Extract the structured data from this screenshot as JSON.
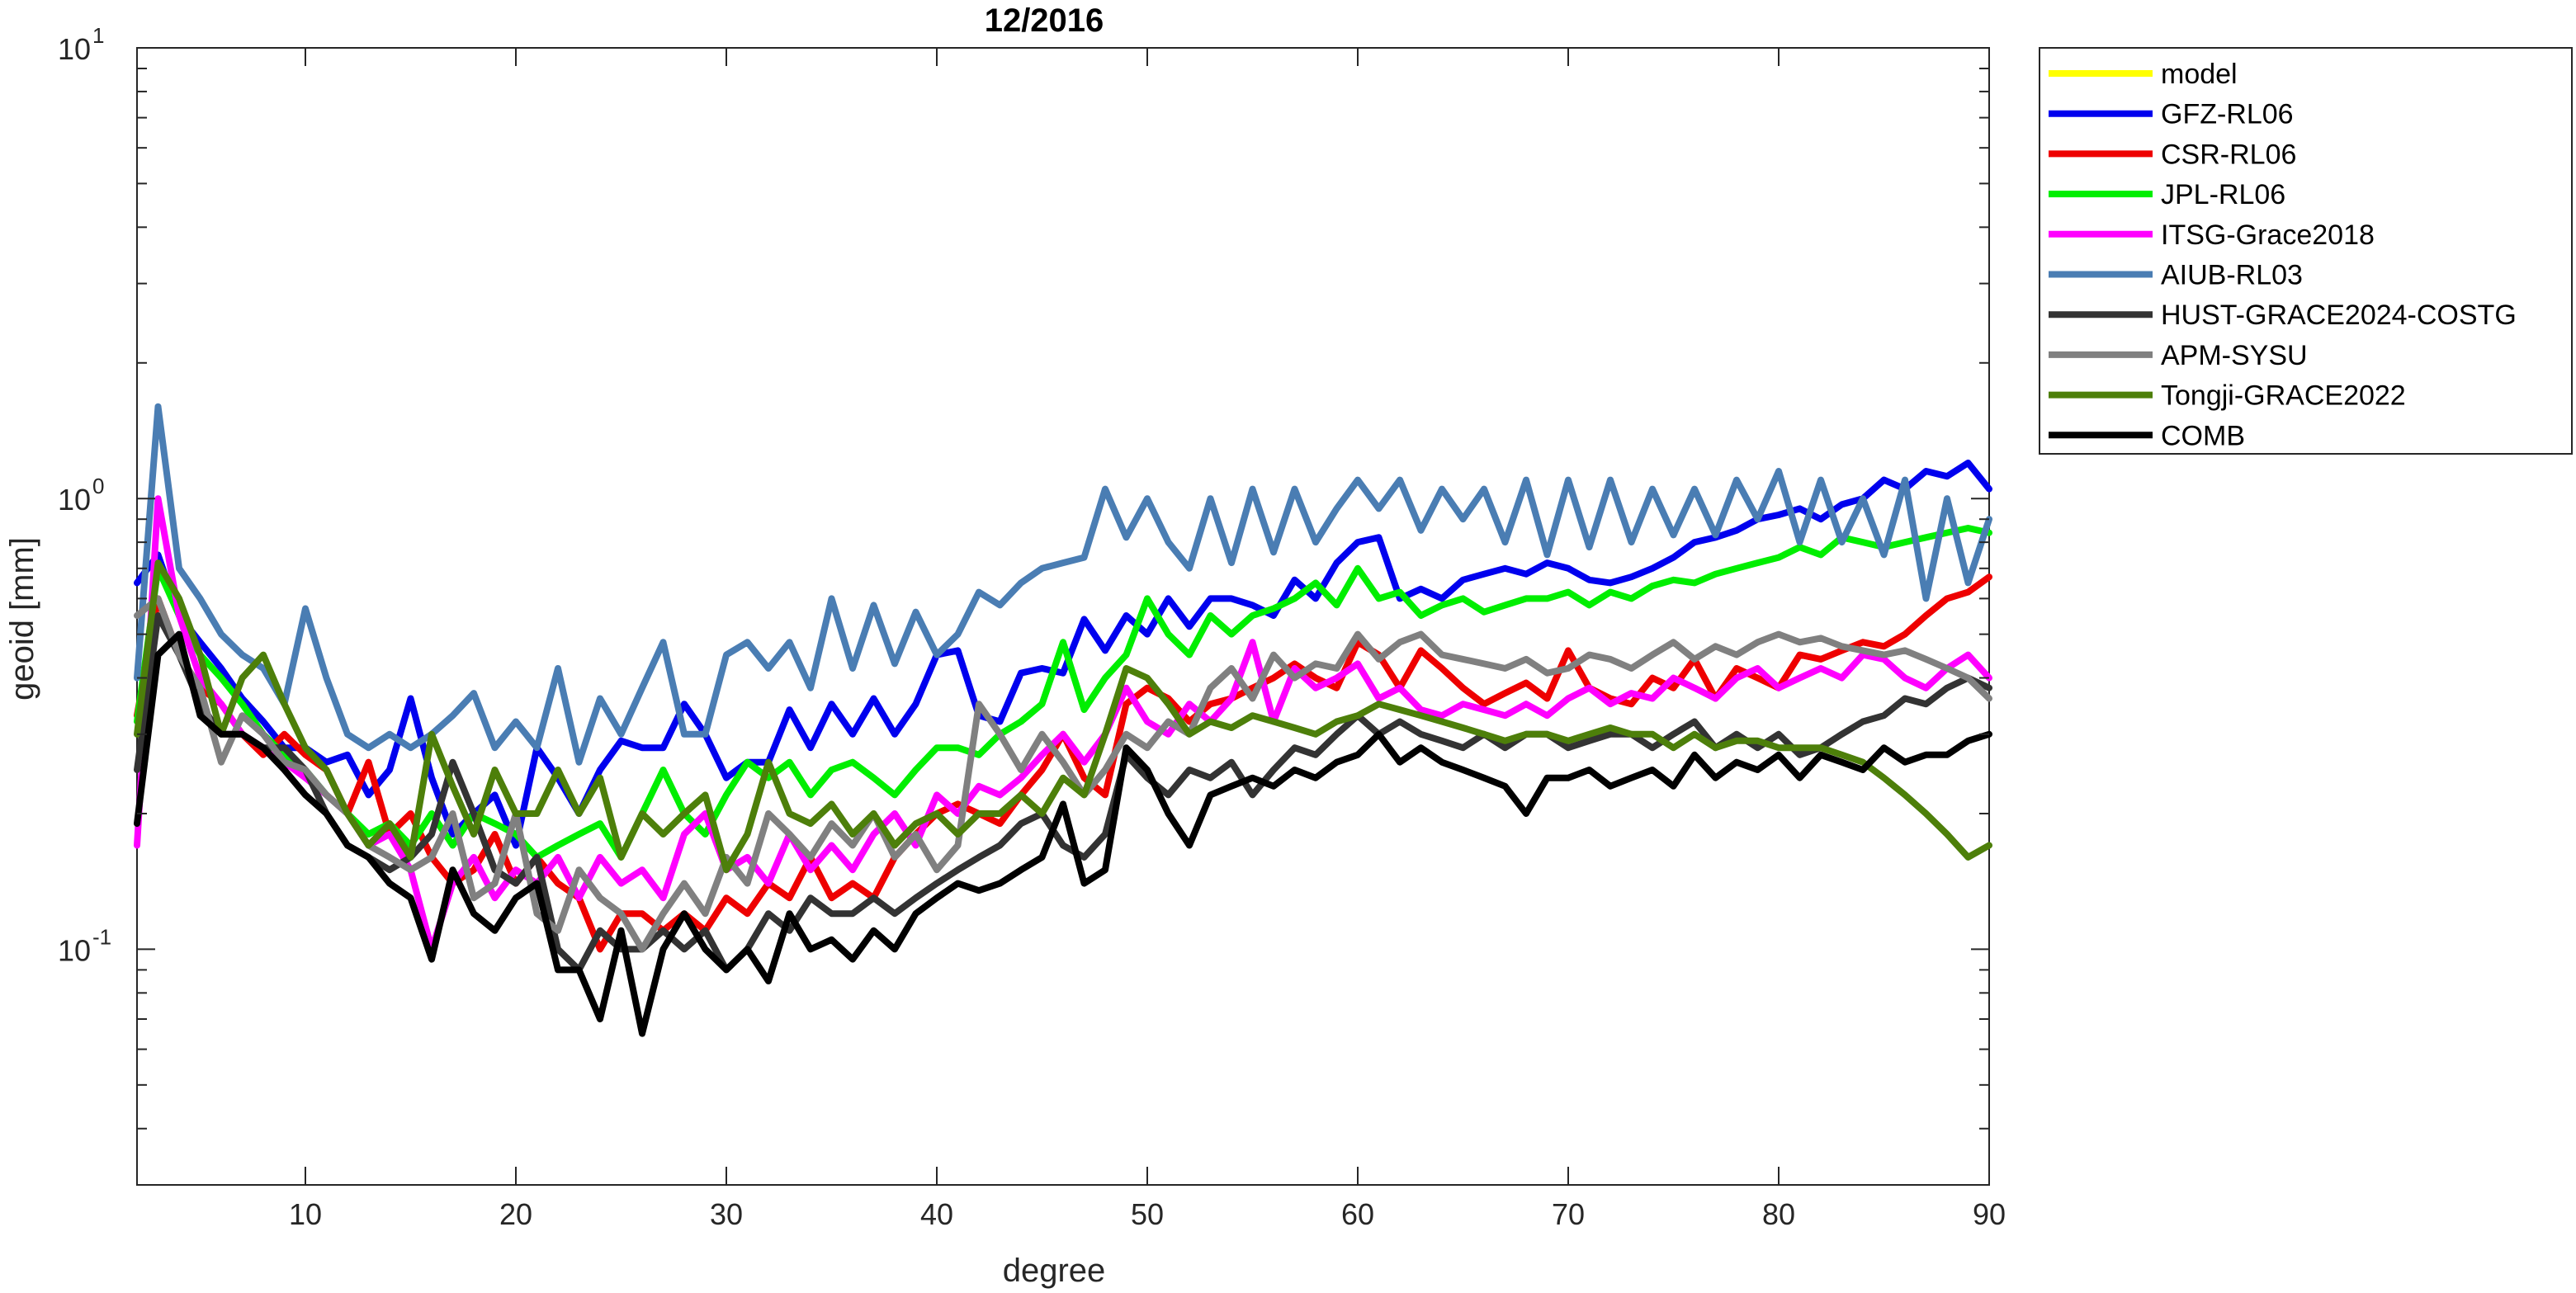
{
  "chart_data": {
    "type": "line",
    "title": "12/2016",
    "xlabel": "degree",
    "ylabel": "geoid [mm]",
    "yscale": "log",
    "xlim": [
      2,
      90
    ],
    "ylim": [
      0.03,
      10
    ],
    "xticks": [
      10,
      20,
      30,
      40,
      50,
      60,
      70,
      80,
      90
    ],
    "yticks": [
      {
        "base": "10",
        "exp": "-1"
      },
      {
        "base": "10",
        "exp": "0"
      },
      {
        "base": "10",
        "exp": "1"
      }
    ],
    "grid": false,
    "legend_position": "outside-right",
    "x_start": 2,
    "series": [
      {
        "name": "model",
        "color": "#ffff00",
        "values": []
      },
      {
        "name": "GFZ-RL06",
        "color": "#0000ee",
        "values": [
          0.65,
          0.75,
          0.55,
          0.48,
          0.42,
          0.36,
          0.32,
          0.28,
          0.28,
          0.26,
          0.27,
          0.22,
          0.25,
          0.36,
          0.24,
          0.18,
          0.2,
          0.22,
          0.17,
          0.28,
          0.24,
          0.2,
          0.25,
          0.29,
          0.28,
          0.28,
          0.35,
          0.3,
          0.24,
          0.26,
          0.26,
          0.34,
          0.28,
          0.35,
          0.3,
          0.36,
          0.3,
          0.35,
          0.45,
          0.46,
          0.33,
          0.32,
          0.41,
          0.42,
          0.41,
          0.54,
          0.46,
          0.55,
          0.5,
          0.6,
          0.52,
          0.6,
          0.6,
          0.58,
          0.55,
          0.66,
          0.6,
          0.72,
          0.8,
          0.82,
          0.6,
          0.63,
          0.6,
          0.66,
          0.68,
          0.7,
          0.68,
          0.72,
          0.7,
          0.66,
          0.65,
          0.67,
          0.7,
          0.74,
          0.8,
          0.82,
          0.85,
          0.9,
          0.92,
          0.95,
          0.9,
          0.97,
          1.0,
          1.1,
          1.05,
          1.15,
          1.12,
          1.2,
          1.05
        ]
      },
      {
        "name": "CSR-RL06",
        "color": "#ee0000",
        "values": [
          0.33,
          0.6,
          0.45,
          0.38,
          0.35,
          0.3,
          0.27,
          0.3,
          0.27,
          0.25,
          0.2,
          0.26,
          0.18,
          0.2,
          0.16,
          0.14,
          0.15,
          0.18,
          0.14,
          0.16,
          0.14,
          0.13,
          0.1,
          0.12,
          0.12,
          0.11,
          0.12,
          0.11,
          0.13,
          0.12,
          0.14,
          0.13,
          0.16,
          0.13,
          0.14,
          0.13,
          0.16,
          0.18,
          0.2,
          0.21,
          0.2,
          0.19,
          0.22,
          0.25,
          0.3,
          0.24,
          0.22,
          0.35,
          0.38,
          0.36,
          0.32,
          0.35,
          0.36,
          0.38,
          0.4,
          0.43,
          0.4,
          0.38,
          0.48,
          0.45,
          0.38,
          0.46,
          0.42,
          0.38,
          0.35,
          0.37,
          0.39,
          0.36,
          0.46,
          0.38,
          0.36,
          0.35,
          0.4,
          0.38,
          0.44,
          0.36,
          0.42,
          0.4,
          0.38,
          0.45,
          0.44,
          0.46,
          0.48,
          0.47,
          0.5,
          0.55,
          0.6,
          0.62,
          0.67
        ]
      },
      {
        "name": "JPL-RL06",
        "color": "#00ee00",
        "values": [
          0.32,
          0.7,
          0.55,
          0.45,
          0.4,
          0.35,
          0.3,
          0.27,
          0.25,
          0.22,
          0.2,
          0.18,
          0.19,
          0.17,
          0.2,
          0.17,
          0.2,
          0.19,
          0.18,
          0.16,
          0.17,
          0.18,
          0.19,
          0.16,
          0.2,
          0.25,
          0.2,
          0.18,
          0.22,
          0.26,
          0.24,
          0.26,
          0.22,
          0.25,
          0.26,
          0.24,
          0.22,
          0.25,
          0.28,
          0.28,
          0.27,
          0.3,
          0.32,
          0.35,
          0.48,
          0.34,
          0.4,
          0.45,
          0.6,
          0.5,
          0.45,
          0.55,
          0.5,
          0.55,
          0.57,
          0.6,
          0.65,
          0.58,
          0.7,
          0.6,
          0.62,
          0.55,
          0.58,
          0.6,
          0.56,
          0.58,
          0.6,
          0.6,
          0.62,
          0.58,
          0.62,
          0.6,
          0.64,
          0.66,
          0.65,
          0.68,
          0.7,
          0.72,
          0.74,
          0.78,
          0.75,
          0.82,
          0.8,
          0.78,
          0.8,
          0.82,
          0.84,
          0.86,
          0.84
        ]
      },
      {
        "name": "ITSG-Grace2018",
        "color": "#ff00ff",
        "values": [
          0.17,
          1.0,
          0.55,
          0.4,
          0.35,
          0.3,
          0.28,
          0.26,
          0.24,
          0.22,
          0.2,
          0.17,
          0.18,
          0.15,
          0.1,
          0.14,
          0.16,
          0.13,
          0.15,
          0.14,
          0.16,
          0.13,
          0.16,
          0.14,
          0.15,
          0.13,
          0.18,
          0.2,
          0.15,
          0.16,
          0.14,
          0.18,
          0.15,
          0.17,
          0.15,
          0.18,
          0.2,
          0.17,
          0.22,
          0.2,
          0.23,
          0.22,
          0.24,
          0.27,
          0.3,
          0.26,
          0.3,
          0.38,
          0.32,
          0.3,
          0.35,
          0.32,
          0.36,
          0.48,
          0.32,
          0.42,
          0.38,
          0.4,
          0.43,
          0.36,
          0.38,
          0.34,
          0.33,
          0.35,
          0.34,
          0.33,
          0.35,
          0.33,
          0.36,
          0.38,
          0.35,
          0.37,
          0.36,
          0.4,
          0.38,
          0.36,
          0.4,
          0.42,
          0.38,
          0.4,
          0.42,
          0.4,
          0.45,
          0.44,
          0.4,
          0.38,
          0.42,
          0.45,
          0.4
        ]
      },
      {
        "name": "AIUB-RL03",
        "color": "#4a7db3",
        "values": [
          0.4,
          1.6,
          0.7,
          0.6,
          0.5,
          0.45,
          0.42,
          0.35,
          0.57,
          0.4,
          0.3,
          0.28,
          0.3,
          0.28,
          0.3,
          0.33,
          0.37,
          0.28,
          0.32,
          0.28,
          0.42,
          0.26,
          0.36,
          0.3,
          0.38,
          0.48,
          0.3,
          0.3,
          0.45,
          0.48,
          0.42,
          0.48,
          0.38,
          0.6,
          0.42,
          0.58,
          0.43,
          0.56,
          0.45,
          0.5,
          0.62,
          0.58,
          0.65,
          0.7,
          0.72,
          0.74,
          1.05,
          0.82,
          1.0,
          0.8,
          0.7,
          1.0,
          0.72,
          1.05,
          0.76,
          1.05,
          0.8,
          0.95,
          1.1,
          0.95,
          1.1,
          0.85,
          1.05,
          0.9,
          1.05,
          0.8,
          1.1,
          0.75,
          1.1,
          0.78,
          1.1,
          0.8,
          1.05,
          0.83,
          1.05,
          0.83,
          1.1,
          0.9,
          1.15,
          0.8,
          1.1,
          0.8,
          1.0,
          0.75,
          1.1,
          0.6,
          1.0,
          0.65,
          0.9
        ]
      },
      {
        "name": "HUST-GRACE2024-COSTG",
        "color": "#333333",
        "values": [
          0.25,
          0.55,
          0.45,
          0.35,
          0.3,
          0.3,
          0.28,
          0.28,
          0.25,
          0.2,
          0.17,
          0.16,
          0.15,
          0.16,
          0.18,
          0.26,
          0.2,
          0.15,
          0.14,
          0.16,
          0.1,
          0.09,
          0.11,
          0.1,
          0.1,
          0.11,
          0.1,
          0.11,
          0.09,
          0.1,
          0.12,
          0.11,
          0.13,
          0.12,
          0.12,
          0.13,
          0.12,
          0.13,
          0.14,
          0.15,
          0.16,
          0.17,
          0.19,
          0.2,
          0.17,
          0.16,
          0.18,
          0.27,
          0.24,
          0.22,
          0.25,
          0.24,
          0.26,
          0.22,
          0.25,
          0.28,
          0.27,
          0.3,
          0.33,
          0.3,
          0.32,
          0.3,
          0.29,
          0.28,
          0.3,
          0.28,
          0.3,
          0.3,
          0.28,
          0.29,
          0.3,
          0.3,
          0.28,
          0.3,
          0.32,
          0.28,
          0.3,
          0.28,
          0.3,
          0.27,
          0.28,
          0.3,
          0.32,
          0.33,
          0.36,
          0.35,
          0.38,
          0.4,
          0.38
        ]
      },
      {
        "name": "APM-SYSU",
        "color": "#808080",
        "values": [
          0.55,
          0.6,
          0.45,
          0.38,
          0.26,
          0.33,
          0.3,
          0.26,
          0.25,
          0.22,
          0.2,
          0.17,
          0.16,
          0.15,
          0.16,
          0.2,
          0.13,
          0.14,
          0.2,
          0.12,
          0.11,
          0.15,
          0.13,
          0.12,
          0.1,
          0.12,
          0.14,
          0.12,
          0.16,
          0.14,
          0.2,
          0.18,
          0.16,
          0.19,
          0.17,
          0.2,
          0.16,
          0.18,
          0.15,
          0.17,
          0.35,
          0.3,
          0.25,
          0.3,
          0.26,
          0.22,
          0.25,
          0.3,
          0.28,
          0.32,
          0.3,
          0.38,
          0.42,
          0.36,
          0.45,
          0.4,
          0.43,
          0.42,
          0.5,
          0.44,
          0.48,
          0.5,
          0.45,
          0.44,
          0.43,
          0.42,
          0.44,
          0.41,
          0.42,
          0.45,
          0.44,
          0.42,
          0.45,
          0.48,
          0.44,
          0.47,
          0.45,
          0.48,
          0.5,
          0.48,
          0.49,
          0.47,
          0.46,
          0.45,
          0.46,
          0.44,
          0.42,
          0.4,
          0.36
        ]
      },
      {
        "name": "Tongji-GRACE2022",
        "color": "#4d7f0a",
        "values": [
          0.3,
          0.72,
          0.6,
          0.45,
          0.3,
          0.4,
          0.45,
          0.35,
          0.28,
          0.25,
          0.2,
          0.17,
          0.19,
          0.16,
          0.3,
          0.23,
          0.18,
          0.25,
          0.2,
          0.2,
          0.25,
          0.2,
          0.24,
          0.16,
          0.2,
          0.18,
          0.2,
          0.22,
          0.15,
          0.18,
          0.26,
          0.2,
          0.19,
          0.21,
          0.18,
          0.2,
          0.17,
          0.19,
          0.2,
          0.18,
          0.2,
          0.2,
          0.22,
          0.2,
          0.24,
          0.22,
          0.3,
          0.42,
          0.4,
          0.35,
          0.3,
          0.32,
          0.31,
          0.33,
          0.32,
          0.31,
          0.3,
          0.32,
          0.33,
          0.35,
          0.34,
          0.33,
          0.32,
          0.31,
          0.3,
          0.29,
          0.3,
          0.3,
          0.29,
          0.3,
          0.31,
          0.3,
          0.3,
          0.28,
          0.3,
          0.28,
          0.29,
          0.29,
          0.28,
          0.28,
          0.28,
          0.27,
          0.26,
          0.24,
          0.22,
          0.2,
          0.18,
          0.16,
          0.17
        ]
      },
      {
        "name": "COMB",
        "color": "#000000",
        "values": [
          0.19,
          0.45,
          0.5,
          0.33,
          0.3,
          0.3,
          0.28,
          0.25,
          0.22,
          0.2,
          0.17,
          0.16,
          0.14,
          0.13,
          0.095,
          0.15,
          0.12,
          0.11,
          0.13,
          0.14,
          0.09,
          0.09,
          0.07,
          0.11,
          0.065,
          0.1,
          0.12,
          0.1,
          0.09,
          0.1,
          0.085,
          0.12,
          0.1,
          0.105,
          0.095,
          0.11,
          0.1,
          0.12,
          0.13,
          0.14,
          0.135,
          0.14,
          0.15,
          0.16,
          0.21,
          0.14,
          0.15,
          0.28,
          0.25,
          0.2,
          0.17,
          0.22,
          0.23,
          0.24,
          0.23,
          0.25,
          0.24,
          0.26,
          0.27,
          0.3,
          0.26,
          0.28,
          0.26,
          0.25,
          0.24,
          0.23,
          0.2,
          0.24,
          0.24,
          0.25,
          0.23,
          0.24,
          0.25,
          0.23,
          0.27,
          0.24,
          0.26,
          0.25,
          0.27,
          0.24,
          0.27,
          0.26,
          0.25,
          0.28,
          0.26,
          0.27,
          0.27,
          0.29,
          0.3
        ]
      }
    ]
  }
}
